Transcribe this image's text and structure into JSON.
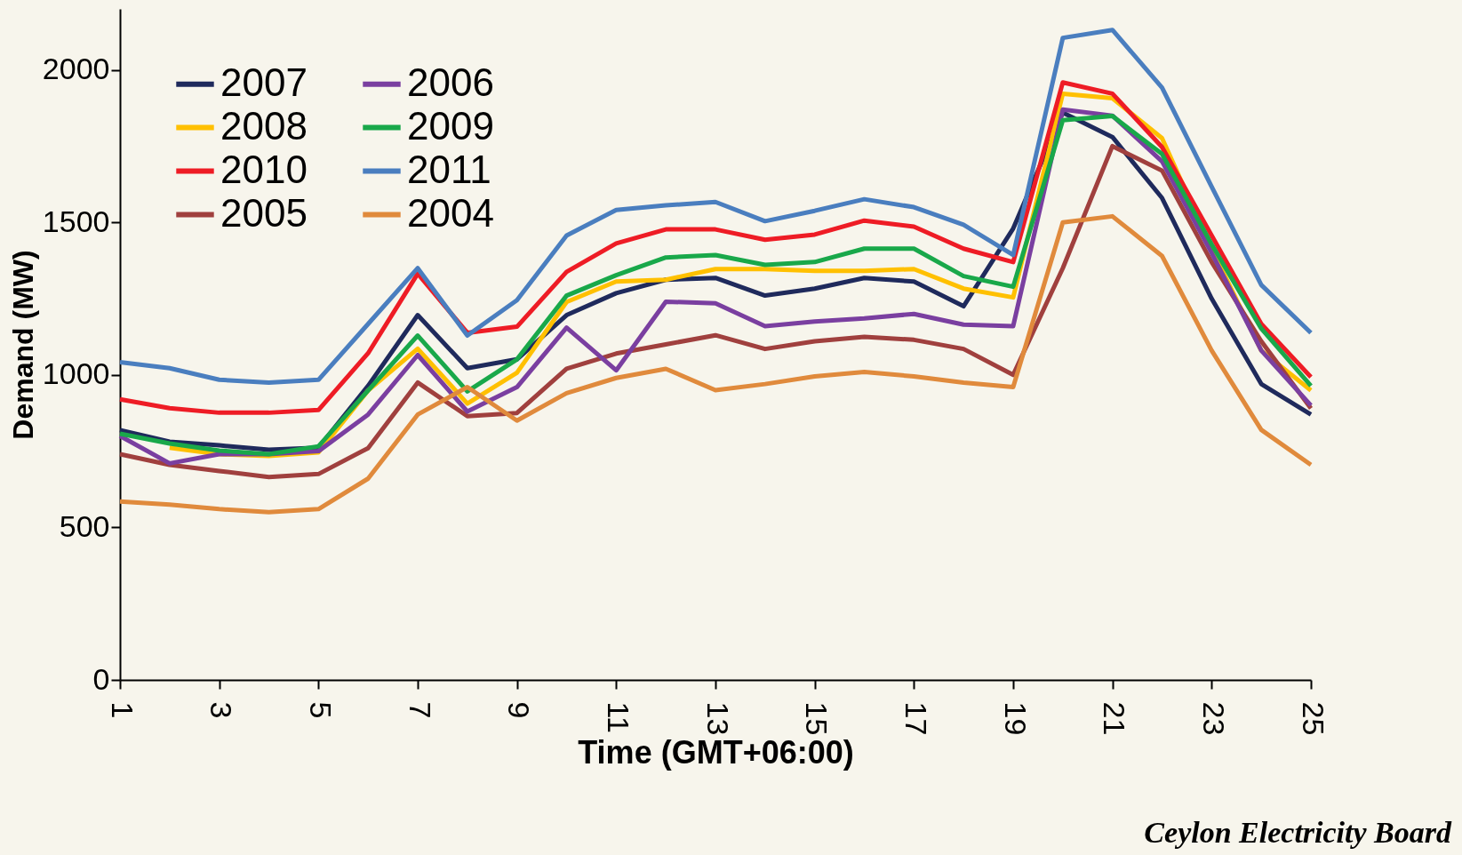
{
  "chart_data": {
    "type": "line",
    "xlabel": "Time (GMT+06:00)",
    "ylabel": "Demand (MW)",
    "annotations": [
      "Ceylon Electricity Board"
    ],
    "x": [
      1,
      2,
      3,
      4,
      5,
      6,
      7,
      8,
      9,
      10,
      11,
      12,
      13,
      14,
      15,
      16,
      17,
      18,
      19,
      20,
      21,
      22,
      23,
      24,
      25
    ],
    "xlim": [
      1,
      25
    ],
    "xticks": [
      1,
      3,
      5,
      7,
      9,
      11,
      13,
      15,
      17,
      19,
      21,
      23,
      25
    ],
    "ylim": [
      0,
      2200
    ],
    "yticks": [
      0,
      500,
      1000,
      1500,
      2000
    ],
    "grid": false,
    "legend": "top left",
    "marker": "none",
    "line_style": "solid",
    "series": [
      {
        "name": "2007",
        "color": "#1f2a5c",
        "values": [
          819,
          781,
          769,
          755,
          761,
          964,
          1196,
          1022,
          1051,
          1196,
          1268,
          1312,
          1318,
          1260,
          1283,
          1318,
          1306,
          1225,
          1480,
          1860,
          1780,
          1580,
          1250,
          970,
          870
        ]
      },
      {
        "name": "2008",
        "color": "#ffc000",
        "values": [
          null,
          761,
          740,
          734,
          746,
          949,
          1086,
          906,
          1007,
          1239,
          1306,
          1312,
          1347,
          1347,
          1341,
          1341,
          1347,
          1283,
          1254,
          1922,
          1907,
          1776,
          1414,
          1080,
          949
        ]
      },
      {
        "name": "2010",
        "color": "#ee1c25",
        "values": [
          920,
          891,
          876,
          876,
          885,
          1071,
          1332,
          1138,
          1158,
          1338,
          1431,
          1477,
          1477,
          1443,
          1460,
          1506,
          1486,
          1414,
          1370,
          1959,
          1922,
          1747,
          1457,
          1167,
          993
        ]
      },
      {
        "name": "2005",
        "color": "#a0403e",
        "values": [
          740,
          705,
          685,
          665,
          675,
          760,
          975,
          865,
          875,
          1020,
          1070,
          1100,
          1130,
          1085,
          1110,
          1125,
          1115,
          1085,
          1000,
          1350,
          1750,
          1670,
          1370,
          1110,
          890
        ]
      },
      {
        "name": "2006",
        "color": "#7a3fa0",
        "values": [
          800,
          710,
          740,
          740,
          750,
          870,
          1065,
          880,
          960,
          1155,
          1015,
          1240,
          1235,
          1160,
          1175,
          1185,
          1200,
          1165,
          1160,
          1870,
          1850,
          1700,
          1400,
          1080,
          900
        ]
      },
      {
        "name": "2009",
        "color": "#19a84a",
        "values": [
          807,
          775,
          752,
          740,
          766,
          949,
          1129,
          946,
          1051,
          1260,
          1327,
          1385,
          1393,
          1361,
          1370,
          1414,
          1414,
          1324,
          1289,
          1835,
          1849,
          1724,
          1428,
          1152,
          964
        ]
      },
      {
        "name": "2011",
        "color": "#4a7ebf",
        "values": [
          1042,
          1022,
          984,
          975,
          984,
          1167,
          1350,
          1129,
          1245,
          1457,
          1541,
          1556,
          1567,
          1504,
          1538,
          1576,
          1550,
          1492,
          1393,
          2105,
          2131,
          1942,
          1617,
          1295,
          1138
        ]
      },
      {
        "name": "2004",
        "color": "#e08a3c",
        "values": [
          585,
          575,
          560,
          550,
          560,
          660,
          870,
          960,
          850,
          940,
          990,
          1020,
          950,
          970,
          995,
          1010,
          995,
          975,
          960,
          1500,
          1520,
          1390,
          1080,
          820,
          705
        ]
      }
    ]
  }
}
